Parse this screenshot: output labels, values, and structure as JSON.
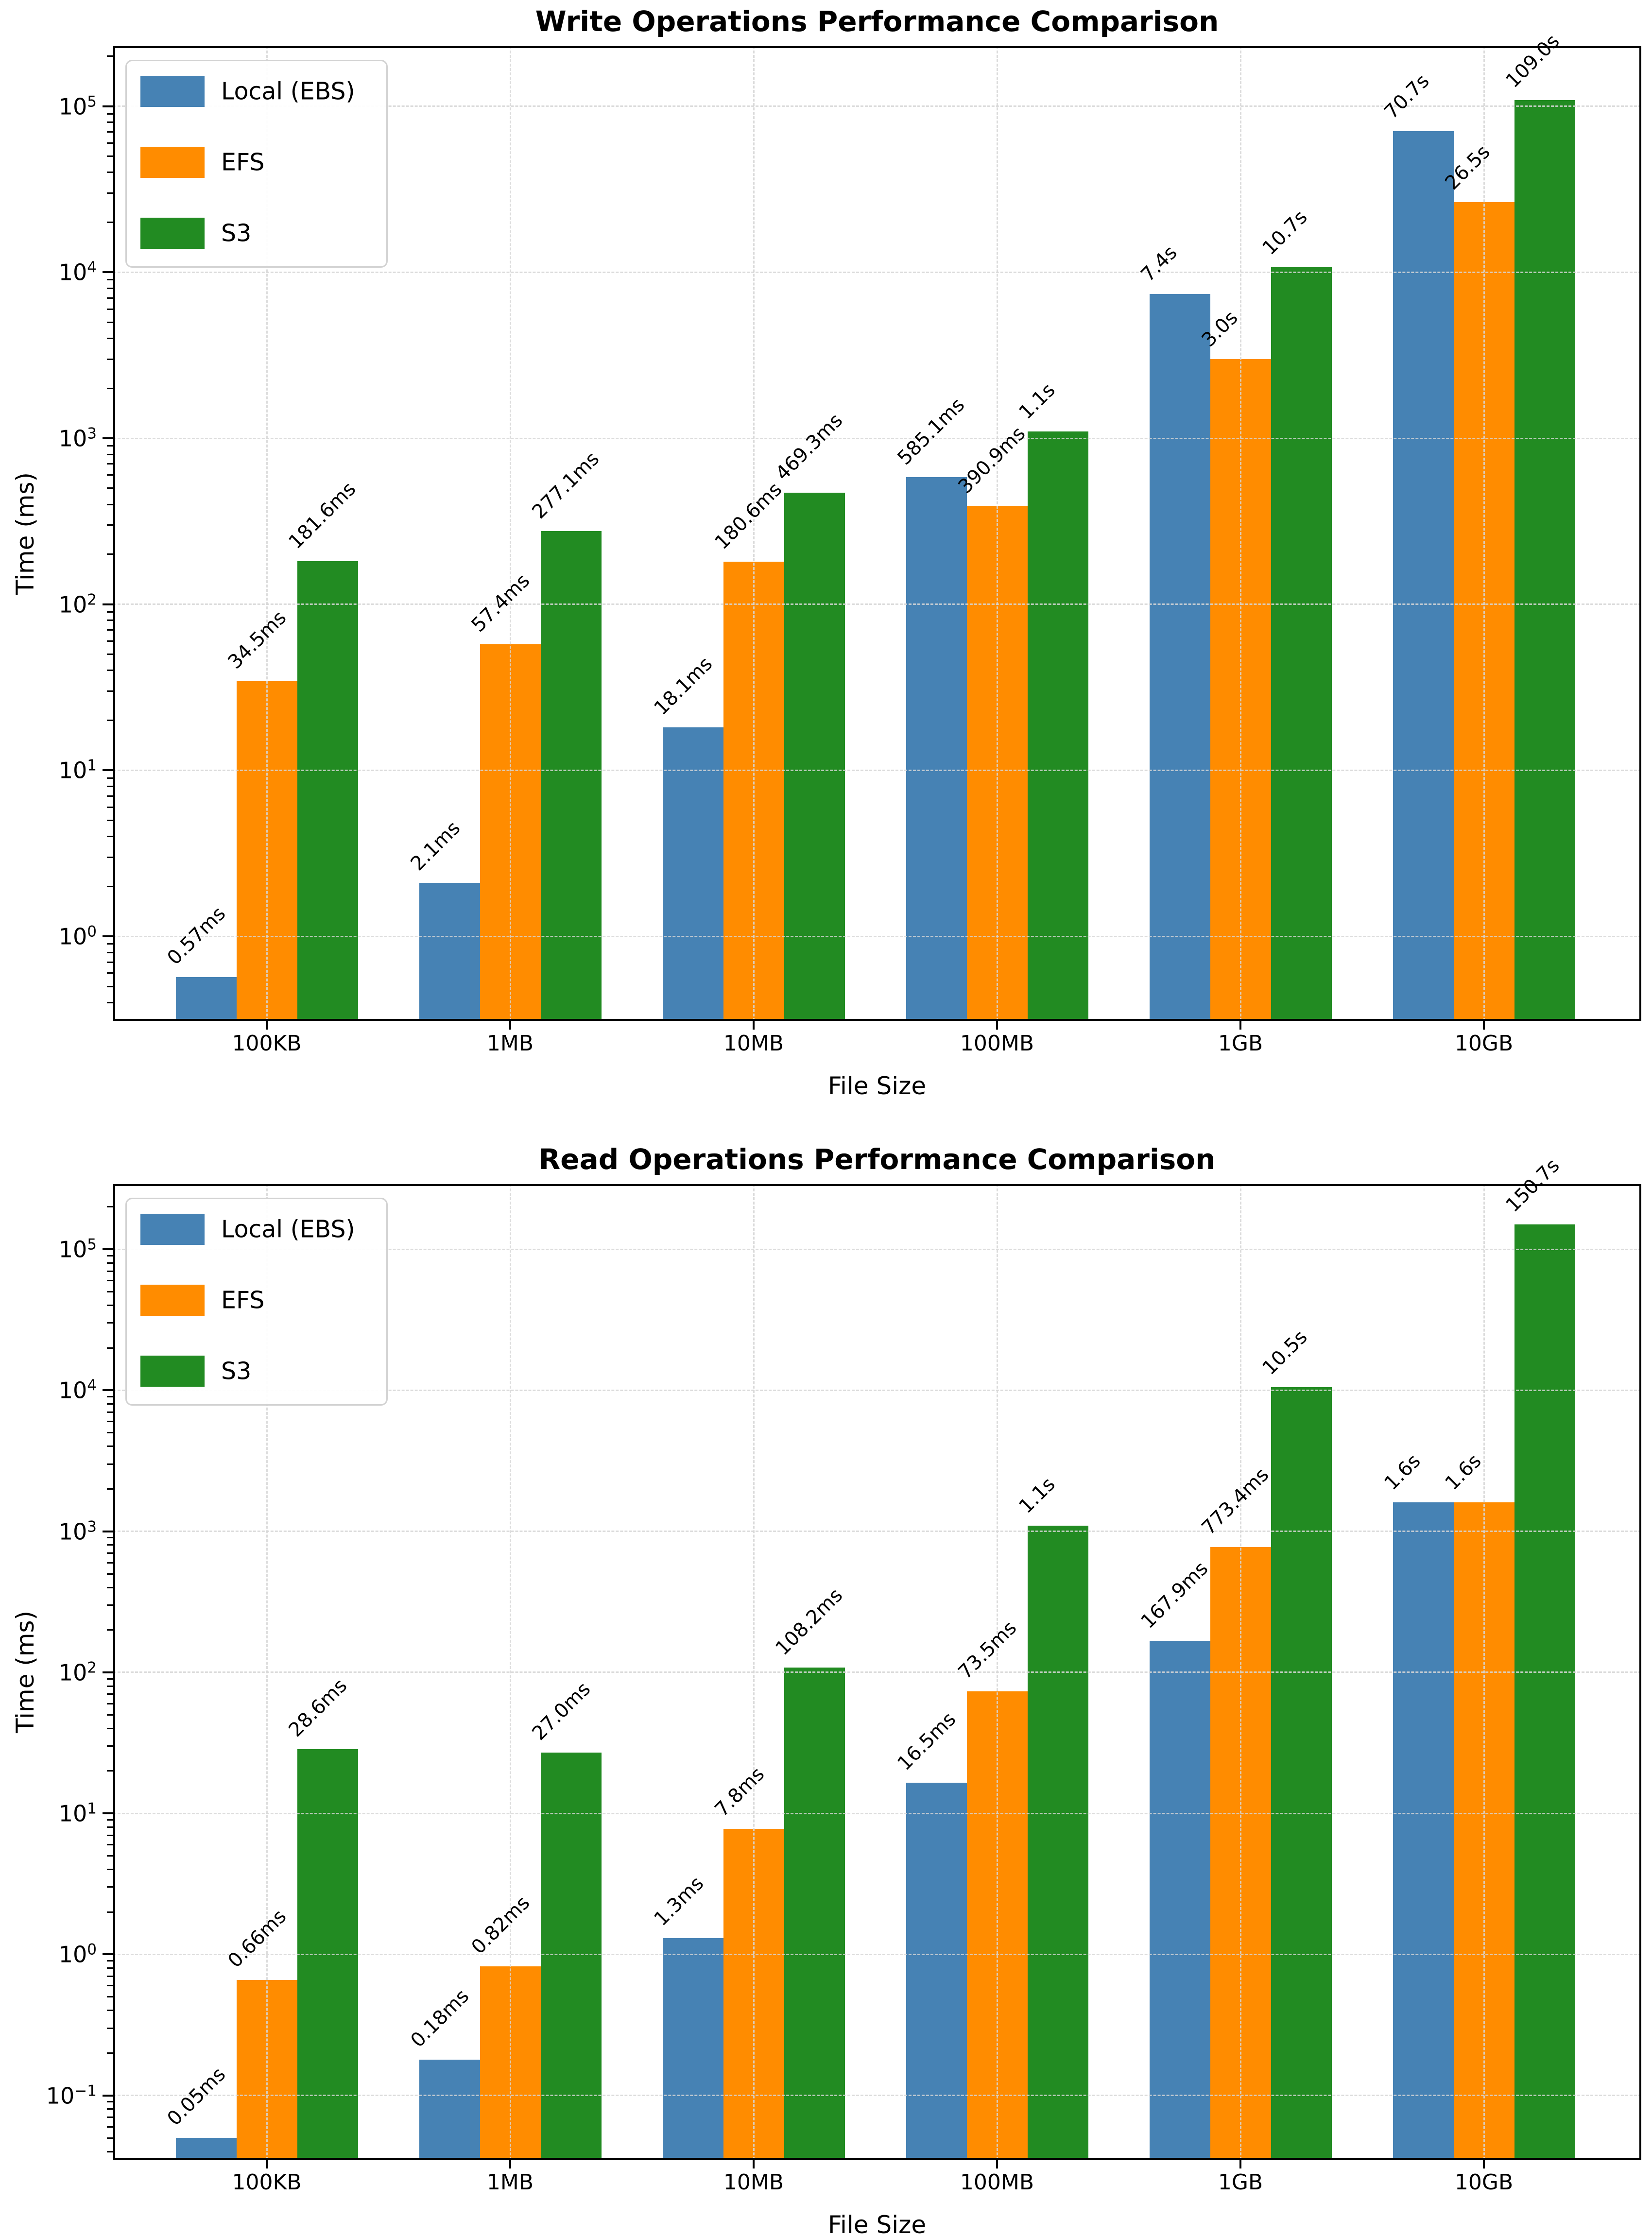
{
  "chart_data": [
    {
      "type": "bar",
      "title": "Write Operations Performance Comparison",
      "xlabel": "File Size",
      "ylabel": "Time (ms)",
      "yscale": "log",
      "grid": true,
      "legend_position": "upper left",
      "categories": [
        "100KB",
        "1MB",
        "10MB",
        "100MB",
        "1GB",
        "10GB"
      ],
      "ylim": [
        0.31,
        230000
      ],
      "ytick_exponents": [
        0,
        1,
        2,
        3,
        4,
        5
      ],
      "series": [
        {
          "name": "Local (EBS)",
          "color": "#4682B4",
          "values_ms": [
            0.57,
            2.1,
            18.1,
            585.1,
            7400,
            70700
          ],
          "labels": [
            "0.57ms",
            "2.1ms",
            "18.1ms",
            "585.1ms",
            "7.4s",
            "70.7s"
          ]
        },
        {
          "name": "EFS",
          "color": "#FF8C00",
          "values_ms": [
            34.5,
            57.4,
            180.6,
            390.9,
            3000,
            26500
          ],
          "labels": [
            "34.5ms",
            "57.4ms",
            "180.6ms",
            "390.9ms",
            "3.0s",
            "26.5s"
          ]
        },
        {
          "name": "S3",
          "color": "#228B22",
          "values_ms": [
            181.6,
            277.1,
            469.3,
            1100,
            10700,
            109000
          ],
          "labels": [
            "181.6ms",
            "277.1ms",
            "469.3ms",
            "1.1s",
            "10.7s",
            "109.0s"
          ]
        }
      ]
    },
    {
      "type": "bar",
      "title": "Read Operations Performance Comparison",
      "xlabel": "File Size",
      "ylabel": "Time (ms)",
      "yscale": "log",
      "grid": true,
      "legend_position": "upper left",
      "categories": [
        "100KB",
        "1MB",
        "10MB",
        "100MB",
        "1GB",
        "10GB"
      ],
      "ylim": [
        0.035,
        290000
      ],
      "ytick_exponents": [
        -1,
        0,
        1,
        2,
        3,
        4,
        5
      ],
      "series": [
        {
          "name": "Local (EBS)",
          "color": "#4682B4",
          "values_ms": [
            0.05,
            0.18,
            1.3,
            16.5,
            167.9,
            1600
          ],
          "labels": [
            "0.05ms",
            "0.18ms",
            "1.3ms",
            "16.5ms",
            "167.9ms",
            "1.6s"
          ]
        },
        {
          "name": "EFS",
          "color": "#FF8C00",
          "values_ms": [
            0.66,
            0.82,
            7.8,
            73.5,
            773.4,
            1600
          ],
          "labels": [
            "0.66ms",
            "0.82ms",
            "7.8ms",
            "73.5ms",
            "773.4ms",
            "1.6s"
          ]
        },
        {
          "name": "S3",
          "color": "#228B22",
          "values_ms": [
            28.6,
            27.0,
            108.2,
            1100,
            10500,
            150700
          ],
          "labels": [
            "28.6ms",
            "27.0ms",
            "108.2ms",
            "1.1s",
            "10.5s",
            "150.7s"
          ]
        }
      ]
    }
  ]
}
